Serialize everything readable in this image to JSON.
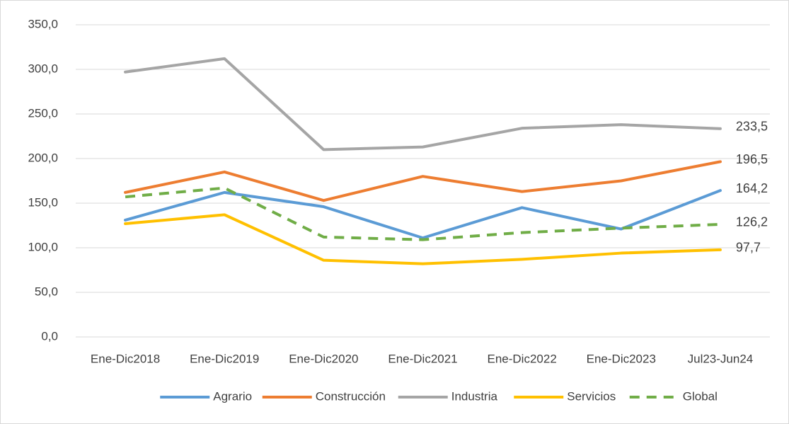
{
  "chart_data": {
    "type": "line",
    "categories": [
      "Ene-Dic2018",
      "Ene-Dic2019",
      "Ene-Dic2020",
      "Ene-Dic2021",
      "Ene-Dic2022",
      "Ene-Dic2023",
      "Jul23-Jun24"
    ],
    "series": [
      {
        "name": "Agrario",
        "color": "#5b9bd5",
        "values": [
          131,
          162,
          146,
          111,
          145,
          121,
          164.2
        ],
        "value_labels": [
          null,
          null,
          null,
          null,
          null,
          null,
          "164,2"
        ]
      },
      {
        "name": "Construcción",
        "color": "#ed7d31",
        "values": [
          162,
          185,
          153,
          180,
          163,
          175,
          196.5
        ],
        "value_labels": [
          null,
          null,
          null,
          null,
          null,
          null,
          "196,5"
        ]
      },
      {
        "name": "Industria",
        "color": "#a5a5a5",
        "values": [
          297,
          312,
          210,
          213,
          234,
          238,
          233.5
        ],
        "value_labels": [
          null,
          null,
          null,
          null,
          null,
          null,
          "233,5"
        ]
      },
      {
        "name": "Servicios",
        "color": "#ffc000",
        "values": [
          127,
          137,
          86,
          82,
          87,
          94,
          97.7
        ],
        "value_labels": [
          null,
          null,
          null,
          null,
          null,
          null,
          "97,7"
        ]
      },
      {
        "name": "Global",
        "color": "#70ad47",
        "dashed": true,
        "values": [
          157,
          167,
          112,
          109,
          117,
          122,
          126.2
        ],
        "value_labels": [
          null,
          null,
          null,
          null,
          null,
          null,
          "126,2"
        ]
      }
    ],
    "ylim": [
      0,
      350
    ],
    "yticks": [
      {
        "value": 0,
        "label": "0,0"
      },
      {
        "value": 50,
        "label": "50,0"
      },
      {
        "value": 100,
        "label": "100,0"
      },
      {
        "value": 150,
        "label": "150,0"
      },
      {
        "value": 200,
        "label": "200,0"
      },
      {
        "value": 250,
        "label": "250,0"
      },
      {
        "value": 300,
        "label": "300,0"
      },
      {
        "value": 350,
        "label": "350,0"
      }
    ],
    "grid": true,
    "legend": "bottom"
  }
}
